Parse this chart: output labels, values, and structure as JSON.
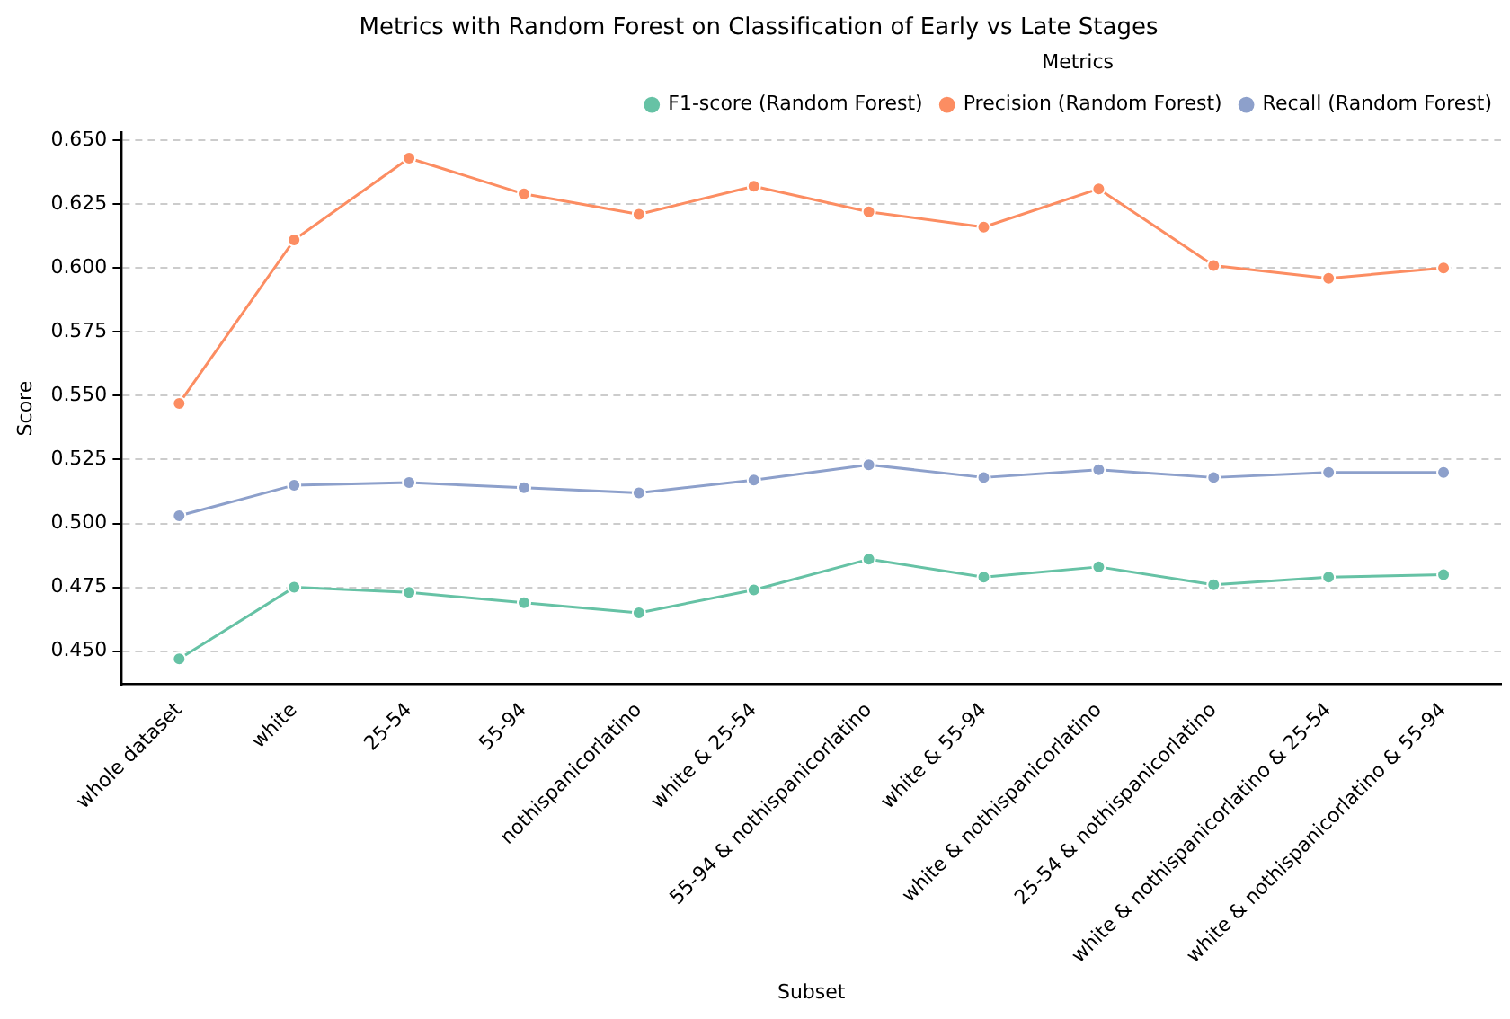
{
  "chart_data": {
    "type": "line",
    "title": "Metrics with Random Forest on Classification of Early vs Late Stages",
    "xlabel": "Subset",
    "ylabel": "Score",
    "legend_title": "Metrics",
    "categories": [
      "whole dataset",
      "white",
      "25-54",
      "55-94",
      "nothispanicorlatino",
      "white & 25-54",
      "55-94 & nothispanicorlatino",
      "white & 55-94",
      "white & nothispanicorlatino",
      "25-54 & nothispanicorlatino",
      "white & nothispanicorlatino & 25-54",
      "white & nothispanicorlatino & 55-94"
    ],
    "series": [
      {
        "name": "F1-score (Random Forest)",
        "color": "#66c2a5",
        "values": [
          0.447,
          0.475,
          0.473,
          0.469,
          0.465,
          0.474,
          0.486,
          0.479,
          0.483,
          0.476,
          0.479,
          0.48
        ]
      },
      {
        "name": "Precision (Random Forest)",
        "color": "#fc8d62",
        "values": [
          0.547,
          0.611,
          0.643,
          0.629,
          0.621,
          0.632,
          0.622,
          0.616,
          0.631,
          0.601,
          0.596,
          0.6
        ]
      },
      {
        "name": "Recall (Random Forest)",
        "color": "#8da0cb",
        "values": [
          0.503,
          0.515,
          0.516,
          0.514,
          0.512,
          0.517,
          0.523,
          0.518,
          0.521,
          0.518,
          0.52,
          0.52
        ]
      }
    ],
    "ylim": [
      0.437,
      0.653
    ],
    "yticks": [
      {
        "value": 0.45,
        "label": "0.450"
      },
      {
        "value": 0.475,
        "label": "0.475"
      },
      {
        "value": 0.5,
        "label": "0.500"
      },
      {
        "value": 0.525,
        "label": "0.525"
      },
      {
        "value": 0.55,
        "label": "0.550"
      },
      {
        "value": 0.575,
        "label": "0.575"
      },
      {
        "value": 0.6,
        "label": "0.600"
      },
      {
        "value": 0.625,
        "label": "0.625"
      },
      {
        "value": 0.65,
        "label": "0.650"
      }
    ],
    "grid": "y",
    "legend": "top right",
    "marker": "circle",
    "line_style": "solid"
  }
}
